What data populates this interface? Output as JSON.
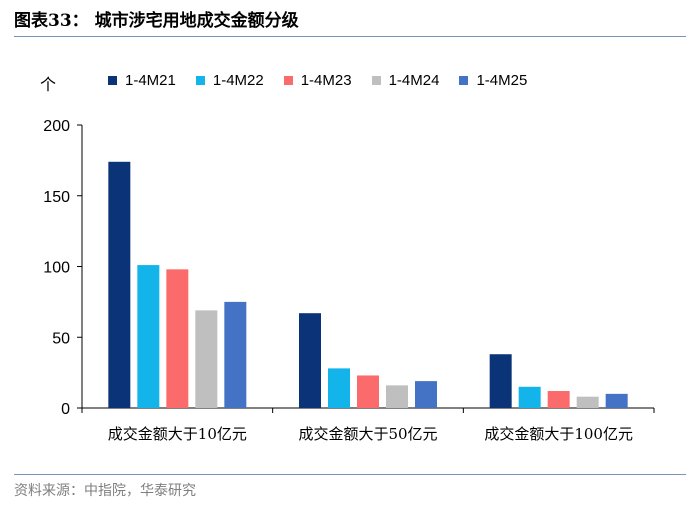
{
  "header": {
    "title": "图表33：  城市涉宅用地成交金额分级"
  },
  "footer": {
    "source": "资料来源：中指院，华泰研究"
  },
  "chart_data": {
    "type": "bar",
    "title": "",
    "unit_label": "个",
    "xlabel": "",
    "ylabel": "",
    "ylim": [
      0,
      200
    ],
    "yticks": [
      0,
      50,
      100,
      150,
      200
    ],
    "grid": false,
    "legend_position": "top",
    "categories": [
      "成交金额大于10亿元",
      "成交金额大于50亿元",
      "成交金额大于100亿元"
    ],
    "series": [
      {
        "name": "1-4M21",
        "color": "#0b3478",
        "values": [
          174,
          67,
          38
        ]
      },
      {
        "name": "1-4M22",
        "color": "#12b4ea",
        "values": [
          101,
          28,
          15
        ]
      },
      {
        "name": "1-4M23",
        "color": "#fb6b6b",
        "values": [
          98,
          23,
          12
        ]
      },
      {
        "name": "1-4M24",
        "color": "#bfbfbf",
        "values": [
          69,
          16,
          8
        ]
      },
      {
        "name": "1-4M25",
        "color": "#4472c4",
        "values": [
          75,
          19,
          10
        ]
      }
    ]
  }
}
